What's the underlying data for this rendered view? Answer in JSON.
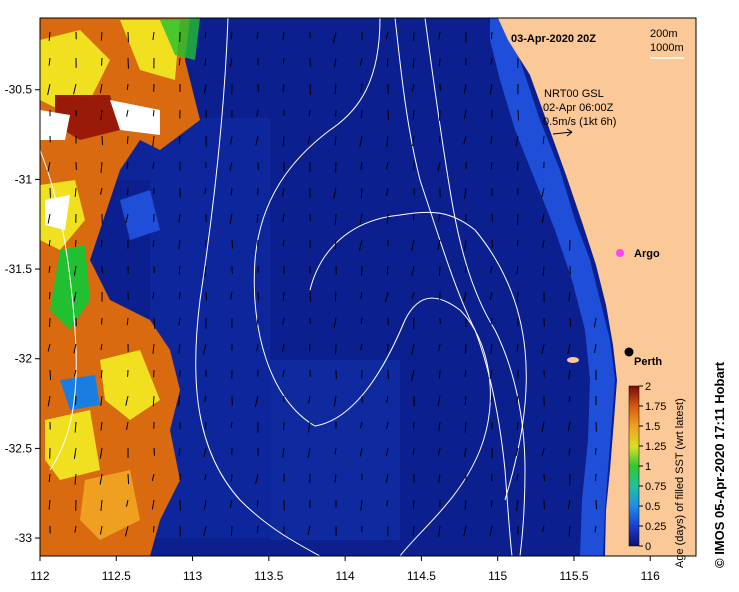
{
  "title": "03-Apr-2020 20Z",
  "depth_legend": {
    "contour_1": "200m",
    "contour_2": "1000m"
  },
  "currents": {
    "source": "NRT00 GSL",
    "time": "02-Apr 06:00Z",
    "scale": "0.5m/s (1kt 6h)"
  },
  "places": [
    {
      "name": "Perth",
      "lon": 115.86,
      "lat": -31.95,
      "marker": "black-dot"
    },
    {
      "name": "Argo",
      "lon": 115.83,
      "lat": -31.45,
      "marker": "magenta-circle"
    }
  ],
  "axes": {
    "lon_ticks": [
      "112",
      "112.5",
      "113",
      "113.5",
      "114",
      "114.5",
      "115",
      "115.5",
      "116"
    ],
    "lat_ticks": [
      "-30.5",
      "-31",
      "-31.5",
      "-32",
      "-32.5",
      "-33"
    ],
    "lon_range": [
      112,
      116.3
    ],
    "lat_range": [
      -33.1,
      -30.1
    ]
  },
  "colorbar": {
    "label": "Age (days) of filled SST (wrt latest)",
    "ticks": [
      "2",
      "1.75",
      "1.5",
      "1.25",
      "1",
      "0.75",
      "0.5",
      "0.25",
      "0"
    ],
    "range": [
      0,
      2
    ]
  },
  "credit": "© IMOS 05-Apr-2020 17:11 Hobart",
  "colors": {
    "ocean_fresh": "#0b1f8f",
    "land": "#fbc897",
    "shelf_blue": "#1f4fd8",
    "old_orange": "#d96a10",
    "yellow": "#f0e020",
    "green": "#20c030",
    "red_brown": "#9a1a0a"
  }
}
